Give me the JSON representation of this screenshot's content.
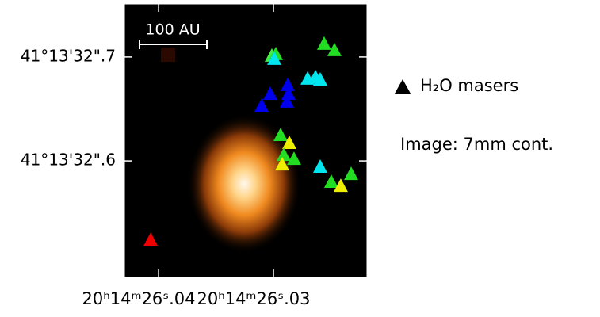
{
  "chart_data": {
    "type": "scatter",
    "scale_bar_label": "100 AU",
    "legend_label": "H₂O masers",
    "annotation": "Image: 7mm cont.",
    "xlim": [
      26.04297,
      26.02186
    ],
    "ylim": [
      32.488,
      32.751
    ],
    "xticks": [
      {
        "value": 26.04,
        "label": "20ʰ14ᵐ26ˢ.04"
      },
      {
        "value": 26.03,
        "label": "20ʰ14ᵐ26ˢ.03"
      }
    ],
    "yticks": [
      {
        "value": 32.7,
        "label": "41°13'32\".7"
      },
      {
        "value": 32.6,
        "label": "41°13'32\".6"
      }
    ],
    "x": [
      26.03014,
      26.02979,
      26.02993,
      26.02559,
      26.02469,
      26.02703,
      26.02634,
      26.02593,
      26.02876,
      26.03028,
      26.03103,
      26.02883,
      26.02869,
      26.02938,
      26.02862,
      26.0291,
      26.02821,
      26.02924,
      26.02593,
      26.02324,
      26.02497,
      26.02414,
      26.04069
    ],
    "y": [
      32.7015,
      32.7031,
      32.6985,
      32.713,
      32.7069,
      32.6794,
      32.6809,
      32.6786,
      32.6733,
      32.6649,
      32.6534,
      32.6573,
      32.6649,
      32.6252,
      32.6176,
      32.6061,
      32.6023,
      32.5969,
      32.5947,
      32.5878,
      32.5802,
      32.5763,
      32.5244
    ],
    "colors": [
      "#44ee44",
      "#22dd22",
      "#00e5ee",
      "#22dd22",
      "#22dd22",
      "#00e5ee",
      "#00e5ee",
      "#00e5ee",
      "#0000ee",
      "#0000ee",
      "#0000ee",
      "#0000ee",
      "#0000ee",
      "#22dd22",
      "#eeee00",
      "#22dd22",
      "#22dd22",
      "#eeee00",
      "#00e5ee",
      "#22dd22",
      "#22dd22",
      "#eeee00",
      "#ee0000"
    ],
    "legend_color": "#000000"
  }
}
